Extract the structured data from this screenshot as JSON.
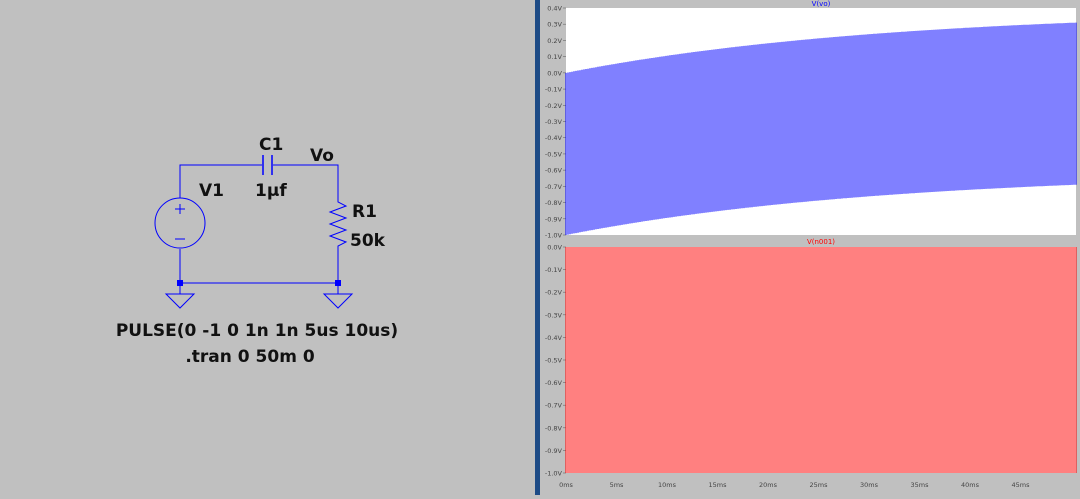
{
  "schematic": {
    "components": {
      "capacitor": {
        "name": "C1",
        "value": "1µf"
      },
      "source": {
        "name": "V1"
      },
      "resistor": {
        "name": "R1",
        "value": "50k"
      },
      "output_node": "Vo"
    },
    "directives": {
      "source_spec": "PULSE(0 -1 0 1n 1n 5us 10us)",
      "simulation": ".tran 0 50m 0"
    }
  },
  "waveforms": {
    "x_ticks": [
      "0ms",
      "5ms",
      "10ms",
      "15ms",
      "20ms",
      "25ms",
      "30ms",
      "35ms",
      "40ms",
      "45ms"
    ],
    "plots": [
      {
        "title": "V(vo)",
        "color": "#0000ff",
        "y_ticks": [
          "0.4V",
          "0.3V",
          "0.2V",
          "0.1V",
          "0.0V",
          "-0.1V",
          "-0.2V",
          "-0.3V",
          "-0.4V",
          "-0.5V",
          "-0.6V",
          "-0.7V",
          "-0.8V",
          "-0.9V",
          "-1.0V"
        ]
      },
      {
        "title": "V(n001)",
        "color": "#ff0000",
        "y_ticks": [
          "0.0V",
          "-0.1V",
          "-0.2V",
          "-0.3V",
          "-0.4V",
          "-0.5V",
          "-0.6V",
          "-0.7V",
          "-0.8V",
          "-0.9V",
          "-1.0V"
        ]
      }
    ]
  }
}
